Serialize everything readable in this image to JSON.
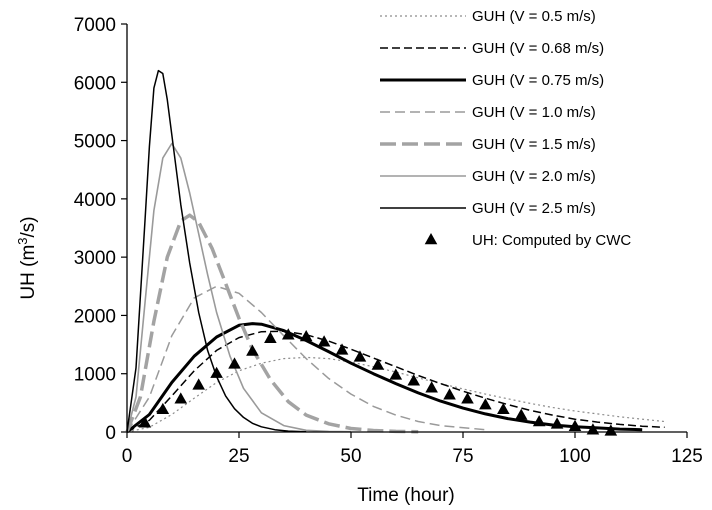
{
  "chart_data": {
    "type": "line",
    "xlabel": "Time (hour)",
    "ylabel": {
      "prefix": "UH (m",
      "sup": "3",
      "suffix": "/s)"
    },
    "xlim": [
      0,
      125
    ],
    "ylim": [
      0,
      7000
    ],
    "xticks": [
      0,
      25,
      50,
      75,
      100,
      125
    ],
    "yticks": [
      0,
      1000,
      2000,
      3000,
      4000,
      5000,
      6000,
      7000
    ],
    "grid": false,
    "legend_position": "top-right",
    "series": [
      {
        "name": "GUH (V = 0.5 m/s)",
        "color": "#8c8c8c",
        "width": 1.2,
        "dash": "2,3",
        "x": [
          0,
          5,
          10,
          15,
          20,
          25,
          30,
          35,
          40,
          45,
          50,
          55,
          60,
          65,
          70,
          75,
          80,
          85,
          90,
          95,
          100,
          105,
          110,
          115,
          120
        ],
        "y": [
          0,
          80,
          300,
          580,
          850,
          1050,
          1180,
          1260,
          1280,
          1260,
          1200,
          1120,
          1030,
          930,
          830,
          740,
          650,
          570,
          490,
          420,
          360,
          310,
          260,
          220,
          180
        ]
      },
      {
        "name": "GUH (V = 0.68 m/s)",
        "color": "#000000",
        "width": 1.5,
        "dash": "8,4",
        "x": [
          0,
          5,
          10,
          15,
          20,
          25,
          30,
          35,
          40,
          45,
          50,
          55,
          60,
          65,
          70,
          75,
          80,
          85,
          90,
          95,
          100,
          105,
          110,
          115,
          120
        ],
        "y": [
          0,
          200,
          620,
          1050,
          1400,
          1620,
          1720,
          1730,
          1670,
          1560,
          1420,
          1270,
          1120,
          970,
          830,
          700,
          580,
          470,
          370,
          290,
          220,
          170,
          130,
          100,
          80
        ]
      },
      {
        "name": "GUH (V = 0.75 m/s)",
        "color": "#000000",
        "width": 3,
        "dash": "",
        "x": [
          0,
          5,
          10,
          15,
          20,
          25,
          28,
          30,
          35,
          40,
          45,
          50,
          55,
          60,
          65,
          70,
          75,
          80,
          85,
          90,
          95,
          100,
          105,
          110,
          115
        ],
        "y": [
          0,
          300,
          850,
          1300,
          1630,
          1830,
          1860,
          1850,
          1740,
          1570,
          1380,
          1180,
          1000,
          830,
          670,
          530,
          410,
          310,
          230,
          170,
          120,
          90,
          70,
          50,
          40
        ]
      },
      {
        "name": "GUH (V = 1.0 m/s)",
        "color": "#9a9a9a",
        "width": 1.5,
        "dash": "10,5",
        "x": [
          0,
          5,
          10,
          15,
          20,
          25,
          30,
          35,
          40,
          45,
          50,
          55,
          60,
          65,
          70,
          80
        ],
        "y": [
          0,
          600,
          1650,
          2300,
          2500,
          2380,
          2050,
          1650,
          1260,
          920,
          650,
          440,
          290,
          180,
          110,
          40
        ]
      },
      {
        "name": "GUH (V = 1.5 m/s)",
        "color": "#a3a3a3",
        "width": 3.5,
        "dash": "16,6",
        "x": [
          0,
          3,
          6,
          9,
          12,
          14,
          16,
          19,
          22,
          25,
          28,
          32,
          36,
          40,
          45,
          50,
          55,
          60,
          65
        ],
        "y": [
          0,
          600,
          1900,
          3000,
          3620,
          3720,
          3600,
          3150,
          2550,
          1950,
          1420,
          900,
          520,
          290,
          140,
          60,
          25,
          10,
          5
        ]
      },
      {
        "name": "GUH (V = 2.0 m/s)",
        "color": "#9a9a9a",
        "width": 1.6,
        "dash": "",
        "x": [
          0,
          2,
          4,
          6,
          8,
          10,
          12,
          14,
          16,
          18,
          20,
          23,
          26,
          30,
          35,
          40,
          45,
          50
        ],
        "y": [
          0,
          600,
          2200,
          3800,
          4700,
          4950,
          4700,
          4100,
          3400,
          2700,
          2050,
          1300,
          750,
          330,
          110,
          30,
          10,
          5
        ]
      },
      {
        "name": "GUH (V = 2.5 m/s)",
        "color": "#000000",
        "width": 1.5,
        "dash": "",
        "x": [
          0,
          2,
          4,
          5,
          6,
          7,
          8,
          9,
          10,
          12,
          14,
          16,
          18,
          20,
          22,
          24,
          26,
          28,
          30,
          33,
          36,
          40
        ],
        "y": [
          0,
          1100,
          3600,
          4900,
          5900,
          6200,
          6150,
          5700,
          5100,
          3900,
          2900,
          2050,
          1400,
          950,
          620,
          400,
          250,
          150,
          90,
          40,
          15,
          5
        ]
      }
    ],
    "observed": {
      "name": "UH: Computed by CWC",
      "color": "#000000",
      "x": [
        4,
        8,
        12,
        16,
        20,
        24,
        28,
        32,
        36,
        40,
        44,
        48,
        52,
        56,
        60,
        64,
        68,
        72,
        76,
        80,
        84,
        88,
        92,
        96,
        100,
        104,
        108
      ],
      "y": [
        150,
        380,
        560,
        800,
        1000,
        1160,
        1380,
        1600,
        1660,
        1630,
        1540,
        1400,
        1280,
        1140,
        970,
        870,
        750,
        630,
        560,
        460,
        380,
        280,
        170,
        130,
        90,
        30,
        10
      ]
    }
  }
}
